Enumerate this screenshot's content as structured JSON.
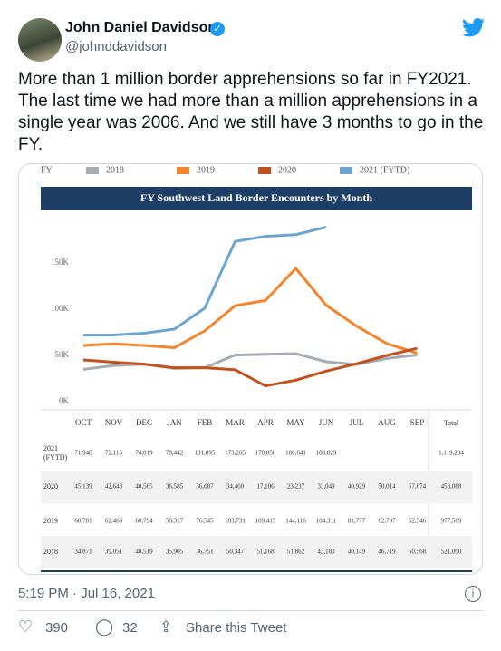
{
  "author": {
    "name": "John Daniel Davidson",
    "handle": "@johnddavidson"
  },
  "tweet": {
    "text": "More than 1 million border apprehensions so far in FY2021. The last time we had more than a million apprehensions in a single year was 2006. And we still have 3 months to go in the FY.",
    "timestamp": "5:19 PM · Jul 16, 2021"
  },
  "stats": {
    "likes": 390,
    "replies": 32
  },
  "actions": {
    "share": "Share this Tweet"
  },
  "chart_data": {
    "type": "line",
    "title": "FY Southwest Land Border Encounters by Month",
    "legend_title": "FY",
    "categories": [
      "OCT",
      "NOV",
      "DEC",
      "JAN",
      "FEB",
      "MAR",
      "APR",
      "MAY",
      "JUN",
      "JUL",
      "AUG",
      "SEP"
    ],
    "total_header": "Total",
    "ylim": [
      0,
      200000
    ],
    "yticks": [
      {
        "value": 0,
        "label": "0K"
      },
      {
        "value": 50000,
        "label": "50K"
      },
      {
        "value": 100000,
        "label": "100K"
      },
      {
        "value": 150000,
        "label": "150K"
      }
    ],
    "series": [
      {
        "name": "2018",
        "color": "#a7abb2",
        "values": [
          34871,
          39051,
          40519,
          35905,
          36751,
          50347,
          51168,
          51862,
          43180,
          40149,
          46719,
          50568
        ],
        "value_labels": [
          "34,871",
          "39,051",
          "40,519",
          "35,905",
          "36,751",
          "50,347",
          "51,168",
          "51,862",
          "43,180",
          "40,149",
          "46,719",
          "50,568"
        ],
        "total": "521,090"
      },
      {
        "name": "2019",
        "color": "#f5842b",
        "values": [
          60781,
          62469,
          60794,
          58317,
          76545,
          103731,
          109415,
          144116,
          104311,
          81777,
          62707,
          52546
        ],
        "value_labels": [
          "60,781",
          "62,469",
          "60,794",
          "58,317",
          "76,545",
          "103,731",
          "109,415",
          "144,116",
          "104,311",
          "81,777",
          "62,707",
          "52,546"
        ],
        "total": "977,509"
      },
      {
        "name": "2020",
        "color": "#c4501d",
        "values": [
          45139,
          42643,
          40565,
          36585,
          36687,
          34460,
          17106,
          23237,
          33049,
          40929,
          50014,
          57674
        ],
        "value_labels": [
          "45,139",
          "42,643",
          "40,565",
          "36,585",
          "36,687",
          "34,460",
          "17,106",
          "23,237",
          "33,049",
          "40,929",
          "50,014",
          "57,674"
        ],
        "total": "458,088"
      },
      {
        "name": "2021 (FYTD)",
        "color": "#6aa4d1",
        "values": [
          71948,
          72115,
          74019,
          78442,
          101095,
          173265,
          178850,
          180641,
          188829,
          null,
          null,
          null
        ],
        "value_labels": [
          "71,948",
          "72,115",
          "74,019",
          "78,442",
          "101,095",
          "173,265",
          "178,850",
          "180,641",
          "188,829",
          null,
          null,
          null
        ],
        "total": "1,119,204"
      }
    ]
  }
}
